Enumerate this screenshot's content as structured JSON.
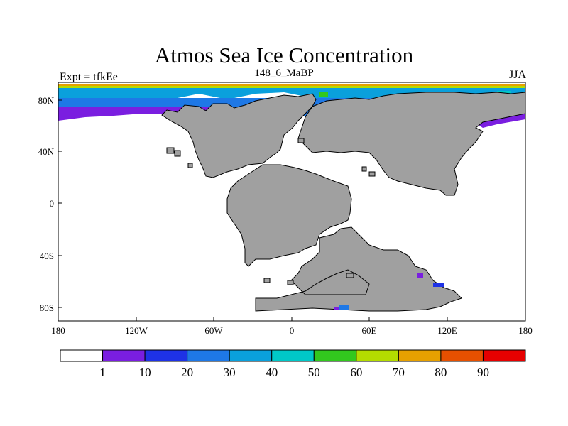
{
  "title": "Atmos Sea Ice Concentration",
  "subtitle_left": "Expt = tfkEe",
  "subtitle_center": "148_6_MaBP",
  "subtitle_right": "JJA",
  "land_color": "#a0a0a0",
  "ocean_color": "#ffffff",
  "map": {
    "lon_ticks": [
      "180",
      "120W",
      "60W",
      "0",
      "60E",
      "120E",
      "180"
    ],
    "lat_ticks": [
      "80N",
      "40N",
      "0",
      "40S",
      "80S"
    ]
  },
  "colorbar": {
    "levels": [
      "1",
      "10",
      "20",
      "30",
      "40",
      "50",
      "60",
      "70",
      "80",
      "90"
    ],
    "colors": [
      "#ffffff",
      "#7a1ee0",
      "#1e32e6",
      "#1e78e6",
      "#0aa0dc",
      "#00c8c8",
      "#32c81e",
      "#b4dc00",
      "#e6a000",
      "#e65000",
      "#e60000"
    ]
  }
}
